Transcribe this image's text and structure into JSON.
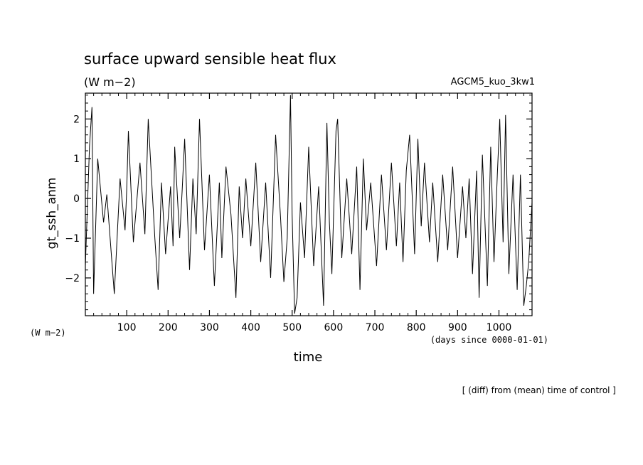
{
  "chart_data": {
    "type": "line",
    "title": "surface upward sensible heat flux",
    "units": "(W m−2)",
    "experiment": "AGCM5_kuo_3kw1",
    "xlabel": "time",
    "ylabel": "gt_ssh_anm",
    "x_units_label": "(W m−2)",
    "x_origin_label": "(days since 0000-01-01)",
    "footnote": "[ (diff) from (mean) time of control ]",
    "xlim": [
      0,
      1080
    ],
    "ylim": [
      -2.95,
      2.65
    ],
    "xticks": [
      100,
      200,
      300,
      400,
      500,
      600,
      700,
      800,
      900,
      1000
    ],
    "xtick_labels": [
      "100",
      "200",
      "300",
      "400",
      "500",
      "600",
      "700",
      "800",
      "900",
      "1000"
    ],
    "yticks": [
      -2,
      -1,
      0,
      1,
      2
    ],
    "ytick_labels": [
      "−2",
      "−1",
      "0",
      "1",
      "2"
    ],
    "grid": false,
    "series": [
      {
        "x": [
          0,
          10,
          16,
          20,
          30,
          44,
          52,
          70,
          84,
          96,
          100,
          104,
          116,
          132,
          144,
          152,
          168,
          176,
          184,
          194,
          206,
          212,
          216,
          228,
          234,
          240,
          252,
          260,
          268,
          276,
          288,
          300,
          312,
          324,
          330,
          340,
          352,
          364,
          372,
          380,
          388,
          400,
          412,
          424,
          436,
          448,
          460,
          472,
          480,
          488,
          496,
          500,
          506,
          512,
          520,
          530,
          540,
          552,
          564,
          576,
          584,
          590,
          596,
          606,
          610,
          620,
          632,
          644,
          656,
          664,
          672,
          680,
          690,
          704,
          716,
          728,
          740,
          752,
          760,
          768,
          776,
          784,
          796,
          804,
          812,
          820,
          832,
          840,
          852,
          864,
          876,
          888,
          900,
          912,
          920,
          928,
          936,
          946,
          952,
          960,
          972,
          980,
          988,
          996,
          1002,
          1010,
          1016,
          1024,
          1034,
          1044,
          1052,
          1060,
          1066,
          1072,
          1080
        ],
        "y": [
          -1.7,
          1.3,
          2.3,
          -2.4,
          1.0,
          -0.6,
          0.1,
          -2.4,
          0.5,
          -0.8,
          0.2,
          1.7,
          -1.1,
          0.9,
          -0.9,
          2.0,
          -1.0,
          -2.3,
          0.4,
          -1.4,
          0.3,
          -1.2,
          1.3,
          -1.0,
          0.2,
          1.5,
          -1.8,
          0.5,
          -0.9,
          2.0,
          -1.3,
          0.6,
          -2.2,
          0.4,
          -1.5,
          0.8,
          -0.4,
          -2.5,
          0.3,
          -1.0,
          0.5,
          -1.2,
          0.9,
          -1.6,
          0.4,
          -2.0,
          1.6,
          -0.5,
          -2.1,
          -1.0,
          2.6,
          -0.4,
          -2.9,
          -2.5,
          -0.1,
          -1.5,
          1.3,
          -1.7,
          0.3,
          -2.7,
          1.9,
          -0.6,
          -1.9,
          1.7,
          2.0,
          -1.5,
          0.5,
          -1.4,
          0.8,
          -2.3,
          1.0,
          -0.8,
          0.4,
          -1.7,
          0.6,
          -1.3,
          0.9,
          -1.2,
          0.4,
          -1.6,
          0.7,
          1.6,
          -1.4,
          1.5,
          -0.7,
          0.9,
          -1.1,
          0.4,
          -1.6,
          0.6,
          -1.3,
          0.8,
          -1.5,
          0.3,
          -1.0,
          0.5,
          -1.9,
          0.7,
          -2.5,
          1.1,
          -2.2,
          1.3,
          -1.6,
          0.6,
          2.0,
          -1.1,
          2.1,
          -1.9,
          0.6,
          -2.3,
          0.6,
          -2.7,
          -2.2,
          -1.6,
          -0.1
        ]
      }
    ]
  }
}
